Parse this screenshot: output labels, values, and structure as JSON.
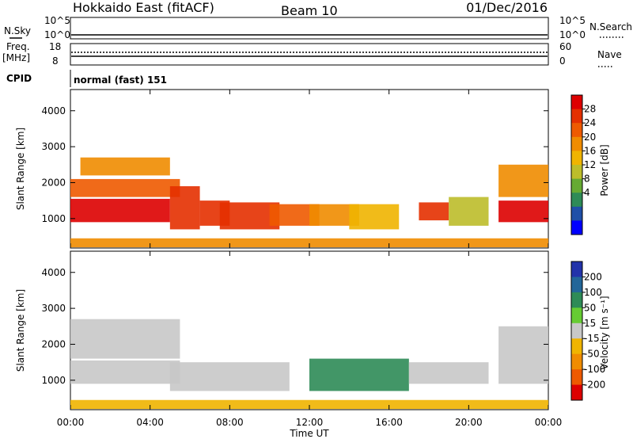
{
  "header": {
    "title": "Hokkaido East (fitACF)",
    "beam": "Beam 10",
    "date": "01/Dec/2016"
  },
  "strips": {
    "nsky_label": "N.Sky",
    "nsearch_label": "N.Search",
    "nsky_ticks": [
      "10^5",
      "10^0"
    ],
    "nsearch_ticks": [
      "10^5",
      "10^0"
    ],
    "freq_label": "Freq.",
    "freq_unit": "[MHz]",
    "freq_ticks": [
      "18",
      "8"
    ],
    "nave_label": "Nave",
    "nave_ticks": [
      "60",
      "0"
    ],
    "cpid_label": "CPID",
    "cpid_value": "normal (fast) 151"
  },
  "chart_data": [
    {
      "type": "heatmap",
      "panel": "power",
      "ylabel": "Slant Range [km]",
      "x_range": [
        "00:00",
        "24:00"
      ],
      "ylim": [
        180,
        4590
      ],
      "y_ticks": [
        1000,
        2000,
        3000,
        4000
      ],
      "colorbar": {
        "label": "Power [dB]",
        "range": [
          0,
          32
        ],
        "ticks": [
          "4",
          "8",
          "12",
          "16",
          "20",
          "24",
          "28"
        ],
        "colors": [
          "#0000ff",
          "#1f4fa8",
          "#2e8b57",
          "#66aa33",
          "#bdbd2a",
          "#f0b400",
          "#f08c00",
          "#ee5a00",
          "#e43000",
          "#dd0000"
        ]
      },
      "regions": [
        {
          "t0": 0.0,
          "t1": 5.0,
          "r0": 900,
          "r1": 1550,
          "v": 29
        },
        {
          "t0": 0.0,
          "t1": 5.5,
          "r0": 1600,
          "r1": 2100,
          "v": 24
        },
        {
          "t0": 0.5,
          "t1": 5.0,
          "r0": 2200,
          "r1": 2700,
          "v": 22
        },
        {
          "t0": 5.0,
          "t1": 6.5,
          "r0": 700,
          "r1": 1900,
          "v": 26
        },
        {
          "t0": 6.5,
          "t1": 8.0,
          "r0": 800,
          "r1": 1500,
          "v": 26
        },
        {
          "t0": 7.5,
          "t1": 10.5,
          "r0": 700,
          "r1": 1450,
          "v": 28
        },
        {
          "t0": 10.0,
          "t1": 12.5,
          "r0": 800,
          "r1": 1400,
          "v": 24
        },
        {
          "t0": 12.0,
          "t1": 14.5,
          "r0": 800,
          "r1": 1400,
          "v": 20
        },
        {
          "t0": 14.0,
          "t1": 16.5,
          "r0": 700,
          "r1": 1400,
          "v": 18
        },
        {
          "t0": 17.5,
          "t1": 19.0,
          "r0": 950,
          "r1": 1450,
          "v": 28
        },
        {
          "t0": 19.0,
          "t1": 21.0,
          "r0": 800,
          "r1": 1600,
          "v": 14
        },
        {
          "t0": 21.5,
          "t1": 24.0,
          "r0": 900,
          "r1": 1500,
          "v": 29
        },
        {
          "t0": 21.5,
          "t1": 24.0,
          "r0": 1600,
          "r1": 2500,
          "v": 20
        },
        {
          "t0": 0.0,
          "t1": 24.0,
          "r0": 200,
          "r1": 450,
          "v": 22
        }
      ]
    },
    {
      "type": "heatmap",
      "panel": "velocity",
      "ylabel": "Slant Range [km]",
      "xlabel": "Time UT",
      "x_ticks": [
        "00:00",
        "04:00",
        "08:00",
        "12:00",
        "16:00",
        "20:00",
        "00:00"
      ],
      "ylim": [
        180,
        4590
      ],
      "y_ticks": [
        1000,
        2000,
        3000,
        4000
      ],
      "colorbar": {
        "label": "Velocity [m s⁻¹]",
        "ticks": [
          "200",
          "100",
          "50",
          "15",
          "-15",
          "-50",
          "-100",
          "-200"
        ],
        "colors": [
          "#2233aa",
          "#226699",
          "#2e8b57",
          "#66cc33",
          "#c8c8c8",
          "#f0b400",
          "#f08c00",
          "#ee5a00",
          "#dd0000"
        ]
      },
      "regions": [
        {
          "t0": 0.0,
          "t1": 5.5,
          "r0": 900,
          "r1": 1550,
          "v": 0
        },
        {
          "t0": 0.0,
          "t1": 5.5,
          "r0": 1600,
          "r1": 2700,
          "v": 0
        },
        {
          "t0": 5.0,
          "t1": 11.0,
          "r0": 700,
          "r1": 1500,
          "v": 0
        },
        {
          "t0": 12.0,
          "t1": 17.0,
          "r0": 700,
          "r1": 1600,
          "v": 60
        },
        {
          "t0": 17.0,
          "t1": 21.0,
          "r0": 900,
          "r1": 1500,
          "v": 0
        },
        {
          "t0": 21.5,
          "t1": 24.0,
          "r0": 900,
          "r1": 2500,
          "v": 0
        },
        {
          "t0": 0.0,
          "t1": 24.0,
          "r0": 200,
          "r1": 450,
          "v": -20
        }
      ]
    }
  ]
}
